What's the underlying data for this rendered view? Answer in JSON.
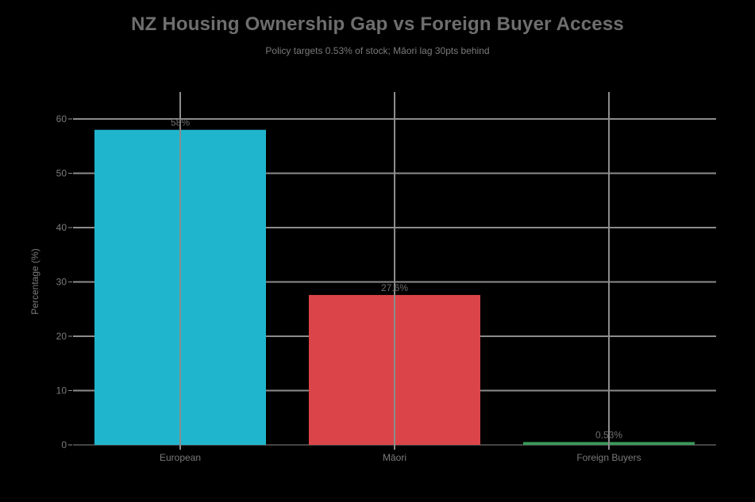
{
  "chart_data": {
    "type": "bar",
    "title": "NZ Housing Ownership Gap vs Foreign Buyer Access",
    "subtitle": "Policy targets 0.53% of stock; Māori lag 30pts behind",
    "xlabel": "",
    "ylabel": "Percentage (%)",
    "categories": [
      "European",
      "Māori",
      "Foreign Buyers"
    ],
    "values": [
      58,
      27.6,
      0.53
    ],
    "data_labels": [
      "58%",
      "27.6%",
      "0.53%"
    ],
    "colors": [
      "#1FB6CD",
      "#DB4549",
      "#3A9A5B"
    ],
    "ylim": [
      0,
      60
    ],
    "yticks": [
      0,
      10,
      20,
      30,
      40,
      50,
      60
    ],
    "grid": true,
    "legend": null
  }
}
